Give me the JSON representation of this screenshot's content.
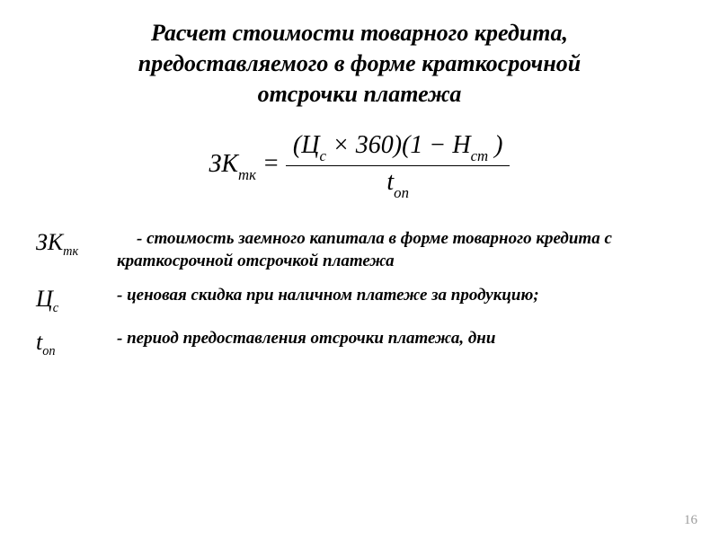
{
  "title": "Расчет стоимости товарного кредита, предоставляемого в форме краткосрочной отсрочки платежа",
  "formula": {
    "lhs_main": "ЗК",
    "lhs_sub": "тк",
    "eq": " = ",
    "num_open": "(",
    "num_sym1": "Ц",
    "num_sym1_sub": "с",
    "num_mid": " × 360)(1 − ",
    "num_sym2": "Н",
    "num_sym2_sub": "ст",
    "num_close": " )",
    "den_sym": "t",
    "den_sub": "оп"
  },
  "defs": [
    {
      "sym_main": "ЗК",
      "sym_sub": "тк",
      "text": "-  стоимость заемного капитала в форме товарного кредита с краткосрочной отсрочкой платежа"
    },
    {
      "sym_main": "Ц",
      "sym_sub": "с",
      "text": "- ценовая скидка при наличном платеже за продукцию;"
    },
    {
      "sym_main": "t",
      "sym_sub": "оп",
      "text": "- период предоставления отсрочки платежа, дни"
    }
  ],
  "page_number": "16",
  "colors": {
    "text": "#000000",
    "bg": "#ffffff",
    "page_num": "#9c9c9c"
  }
}
